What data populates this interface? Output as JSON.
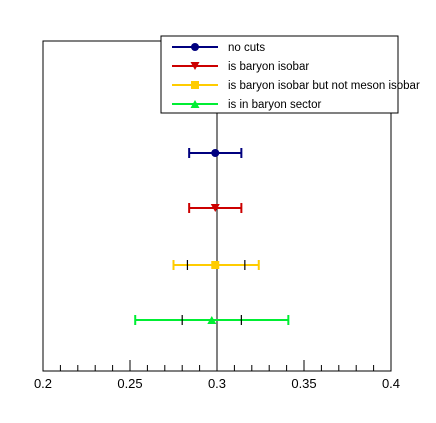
{
  "chart_data": {
    "type": "scatter",
    "title": "",
    "xlabel": "",
    "ylabel": "",
    "xlim": [
      0.2,
      0.4
    ],
    "x_ticks": [
      "0.2",
      "0.25",
      "0.3",
      "0.35",
      "0.4"
    ],
    "reference_line_x": 0.3,
    "legend": {
      "placement": "top-right",
      "frame": true
    },
    "series": [
      {
        "name": "no cuts",
        "marker": "circle",
        "color": "#00007f",
        "x": 0.299,
        "err_low": 0.284,
        "err_high": 0.314,
        "inner_low": null,
        "inner_high": null
      },
      {
        "name": "is baryon isobar",
        "marker": "triangle-down",
        "color": "#cc0000",
        "x": 0.299,
        "err_low": 0.284,
        "err_high": 0.314,
        "inner_low": null,
        "inner_high": null
      },
      {
        "name": "is baryon isobar but not meson isobar",
        "marker": "square",
        "color": "#ffcc00",
        "x": 0.299,
        "err_low": 0.275,
        "err_high": 0.324,
        "inner_low": 0.283,
        "inner_high": 0.316
      },
      {
        "name": "is in baryon sector",
        "marker": "triangle-up",
        "color": "#00ee33",
        "x": 0.297,
        "err_low": 0.253,
        "err_high": 0.341,
        "inner_low": 0.28,
        "inner_high": 0.314
      }
    ]
  }
}
